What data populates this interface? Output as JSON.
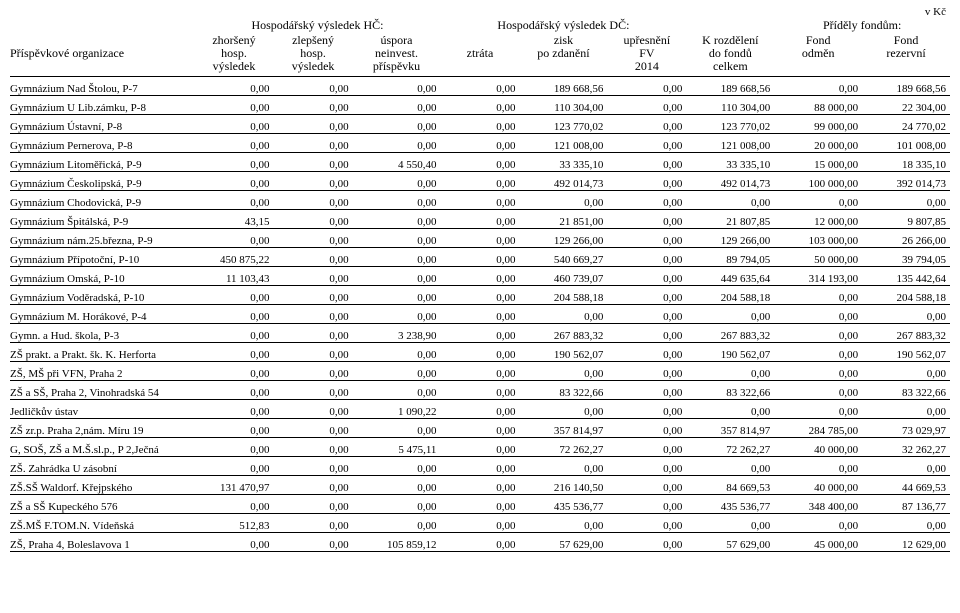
{
  "meta": {
    "unit_label": "v Kč",
    "background_color": "#ffffff",
    "text_color": "#000000",
    "border_color": "#000000",
    "font_family": "Times New Roman",
    "body_font_size_pt": 8,
    "header_font_size_pt": 9
  },
  "header": {
    "group_hc": "Hospodářský výsledek HČ:",
    "group_dc": "Hospodářský výsledek DČ:",
    "group_funds": "Příděly fondům:",
    "cols": {
      "0": "Příspěvkové organizace",
      "1": {
        "l1": "zhoršený",
        "l2": "hosp.",
        "l3": "výsledek"
      },
      "2": {
        "l1": "zlepšený",
        "l2": "hosp.",
        "l3": "výsledek"
      },
      "3": {
        "l1": "úspora",
        "l2": "neinvest.",
        "l3": "příspěvku"
      },
      "4": {
        "l2": "ztráta"
      },
      "5": {
        "l1": "zisk",
        "l2": "po zdanění"
      },
      "6": {
        "l1": "upřesnění",
        "l2": "FV",
        "l3": "2014"
      },
      "7": {
        "l1": "K rozdělení",
        "l2": "do fondů",
        "l3": "celkem"
      },
      "8": {
        "l1": "Fond",
        "l2": "odměn"
      },
      "9": {
        "l1": "Fond",
        "l2": "rezervní"
      }
    }
  },
  "columns": [
    "name",
    "zhorseny",
    "zlepseny",
    "uspora",
    "ztrata",
    "zisk",
    "upresneni",
    "rozdeleni",
    "fond_odmen",
    "fond_rezervni"
  ],
  "column_align": [
    "left",
    "right",
    "right",
    "right",
    "right",
    "right",
    "right",
    "right",
    "right",
    "right"
  ],
  "rows": [
    [
      "Gymnázium Nad Štolou, P-7",
      "0,00",
      "0,00",
      "0,00",
      "0,00",
      "189 668,56",
      "0,00",
      "189 668,56",
      "0,00",
      "189 668,56"
    ],
    [
      "Gymnázium U Lib.zámku, P-8",
      "0,00",
      "0,00",
      "0,00",
      "0,00",
      "110 304,00",
      "0,00",
      "110 304,00",
      "88 000,00",
      "22 304,00"
    ],
    [
      "Gymnázium Ústavní, P-8",
      "0,00",
      "0,00",
      "0,00",
      "0,00",
      "123 770,02",
      "0,00",
      "123 770,02",
      "99 000,00",
      "24 770,02"
    ],
    [
      "Gymnázium Pernerova, P-8",
      "0,00",
      "0,00",
      "0,00",
      "0,00",
      "121 008,00",
      "0,00",
      "121 008,00",
      "20 000,00",
      "101 008,00"
    ],
    [
      "Gymnázium Litoměřická, P-9",
      "0,00",
      "0,00",
      "4 550,40",
      "0,00",
      "33 335,10",
      "0,00",
      "33 335,10",
      "15 000,00",
      "18 335,10"
    ],
    [
      "Gymnázium Českolipská, P-9",
      "0,00",
      "0,00",
      "0,00",
      "0,00",
      "492 014,73",
      "0,00",
      "492 014,73",
      "100 000,00",
      "392 014,73"
    ],
    [
      "Gymnázium Chodovická, P-9",
      "0,00",
      "0,00",
      "0,00",
      "0,00",
      "0,00",
      "0,00",
      "0,00",
      "0,00",
      "0,00"
    ],
    [
      "Gymnázium Špitálská, P-9",
      "43,15",
      "0,00",
      "0,00",
      "0,00",
      "21 851,00",
      "0,00",
      "21 807,85",
      "12 000,00",
      "9 807,85"
    ],
    [
      "Gymnázium nám.25.března, P-9",
      "0,00",
      "0,00",
      "0,00",
      "0,00",
      "129 266,00",
      "0,00",
      "129 266,00",
      "103 000,00",
      "26 266,00"
    ],
    [
      "Gymnázium Přípotoční, P-10",
      "450 875,22",
      "0,00",
      "0,00",
      "0,00",
      "540 669,27",
      "0,00",
      "89 794,05",
      "50 000,00",
      "39 794,05"
    ],
    [
      "Gymnázium Omská, P-10",
      "11 103,43",
      "0,00",
      "0,00",
      "0,00",
      "460 739,07",
      "0,00",
      "449 635,64",
      "314 193,00",
      "135 442,64"
    ],
    [
      "Gymnázium Voděradská, P-10",
      "0,00",
      "0,00",
      "0,00",
      "0,00",
      "204 588,18",
      "0,00",
      "204 588,18",
      "0,00",
      "204 588,18"
    ],
    [
      "Gymnázium M. Horákové, P-4",
      "0,00",
      "0,00",
      "0,00",
      "0,00",
      "0,00",
      "0,00",
      "0,00",
      "0,00",
      "0,00"
    ],
    [
      "Gymn. a Hud. škola, P-3",
      "0,00",
      "0,00",
      "3 238,90",
      "0,00",
      "267 883,32",
      "0,00",
      "267 883,32",
      "0,00",
      "267 883,32"
    ],
    [
      "ZŠ prakt. a Prakt. šk. K. Herforta",
      "0,00",
      "0,00",
      "0,00",
      "0,00",
      "190 562,07",
      "0,00",
      "190 562,07",
      "0,00",
      "190 562,07"
    ],
    [
      "ZŠ, MŠ při VFN, Praha 2",
      "0,00",
      "0,00",
      "0,00",
      "0,00",
      "0,00",
      "0,00",
      "0,00",
      "0,00",
      "0,00"
    ],
    [
      "ZŠ a SŠ, Praha 2, Vinohradská 54",
      "0,00",
      "0,00",
      "0,00",
      "0,00",
      "83 322,66",
      "0,00",
      "83 322,66",
      "0,00",
      "83 322,66"
    ],
    [
      "Jedličkův ústav",
      "0,00",
      "0,00",
      "1 090,22",
      "0,00",
      "0,00",
      "0,00",
      "0,00",
      "0,00",
      "0,00"
    ],
    [
      "ZŠ zr.p. Praha 2,nám. Míru 19",
      "0,00",
      "0,00",
      "0,00",
      "0,00",
      "357 814,97",
      "0,00",
      "357 814,97",
      "284 785,00",
      "73 029,97"
    ],
    [
      "G, SOŠ,  ZŠ a M.Š.sl.p., P 2,Ječná",
      "0,00",
      "0,00",
      "5 475,11",
      "0,00",
      "72 262,27",
      "0,00",
      "72 262,27",
      "40 000,00",
      "32 262,27"
    ],
    [
      "ZŠ. Zahrádka U zásobní",
      "0,00",
      "0,00",
      "0,00",
      "0,00",
      "0,00",
      "0,00",
      "0,00",
      "0,00",
      "0,00"
    ],
    [
      "ZŠ.SŠ Waldorf. Křejpského",
      "131 470,97",
      "0,00",
      "0,00",
      "0,00",
      "216 140,50",
      "0,00",
      "84 669,53",
      "40 000,00",
      "44 669,53"
    ],
    [
      "ZŠ a SŠ Kupeckého 576",
      "0,00",
      "0,00",
      "0,00",
      "0,00",
      "435 536,77",
      "0,00",
      "435 536,77",
      "348 400,00",
      "87 136,77"
    ],
    [
      "ZŠ.MŠ F.TOM.N. Vídeňská",
      "512,83",
      "0,00",
      "0,00",
      "0,00",
      "0,00",
      "0,00",
      "0,00",
      "0,00",
      "0,00"
    ],
    [
      "ZŠ, Praha 4, Boleslavova 1",
      "0,00",
      "0,00",
      "105 859,12",
      "0,00",
      "57 629,00",
      "0,00",
      "57 629,00",
      "45 000,00",
      "12 629,00"
    ]
  ]
}
